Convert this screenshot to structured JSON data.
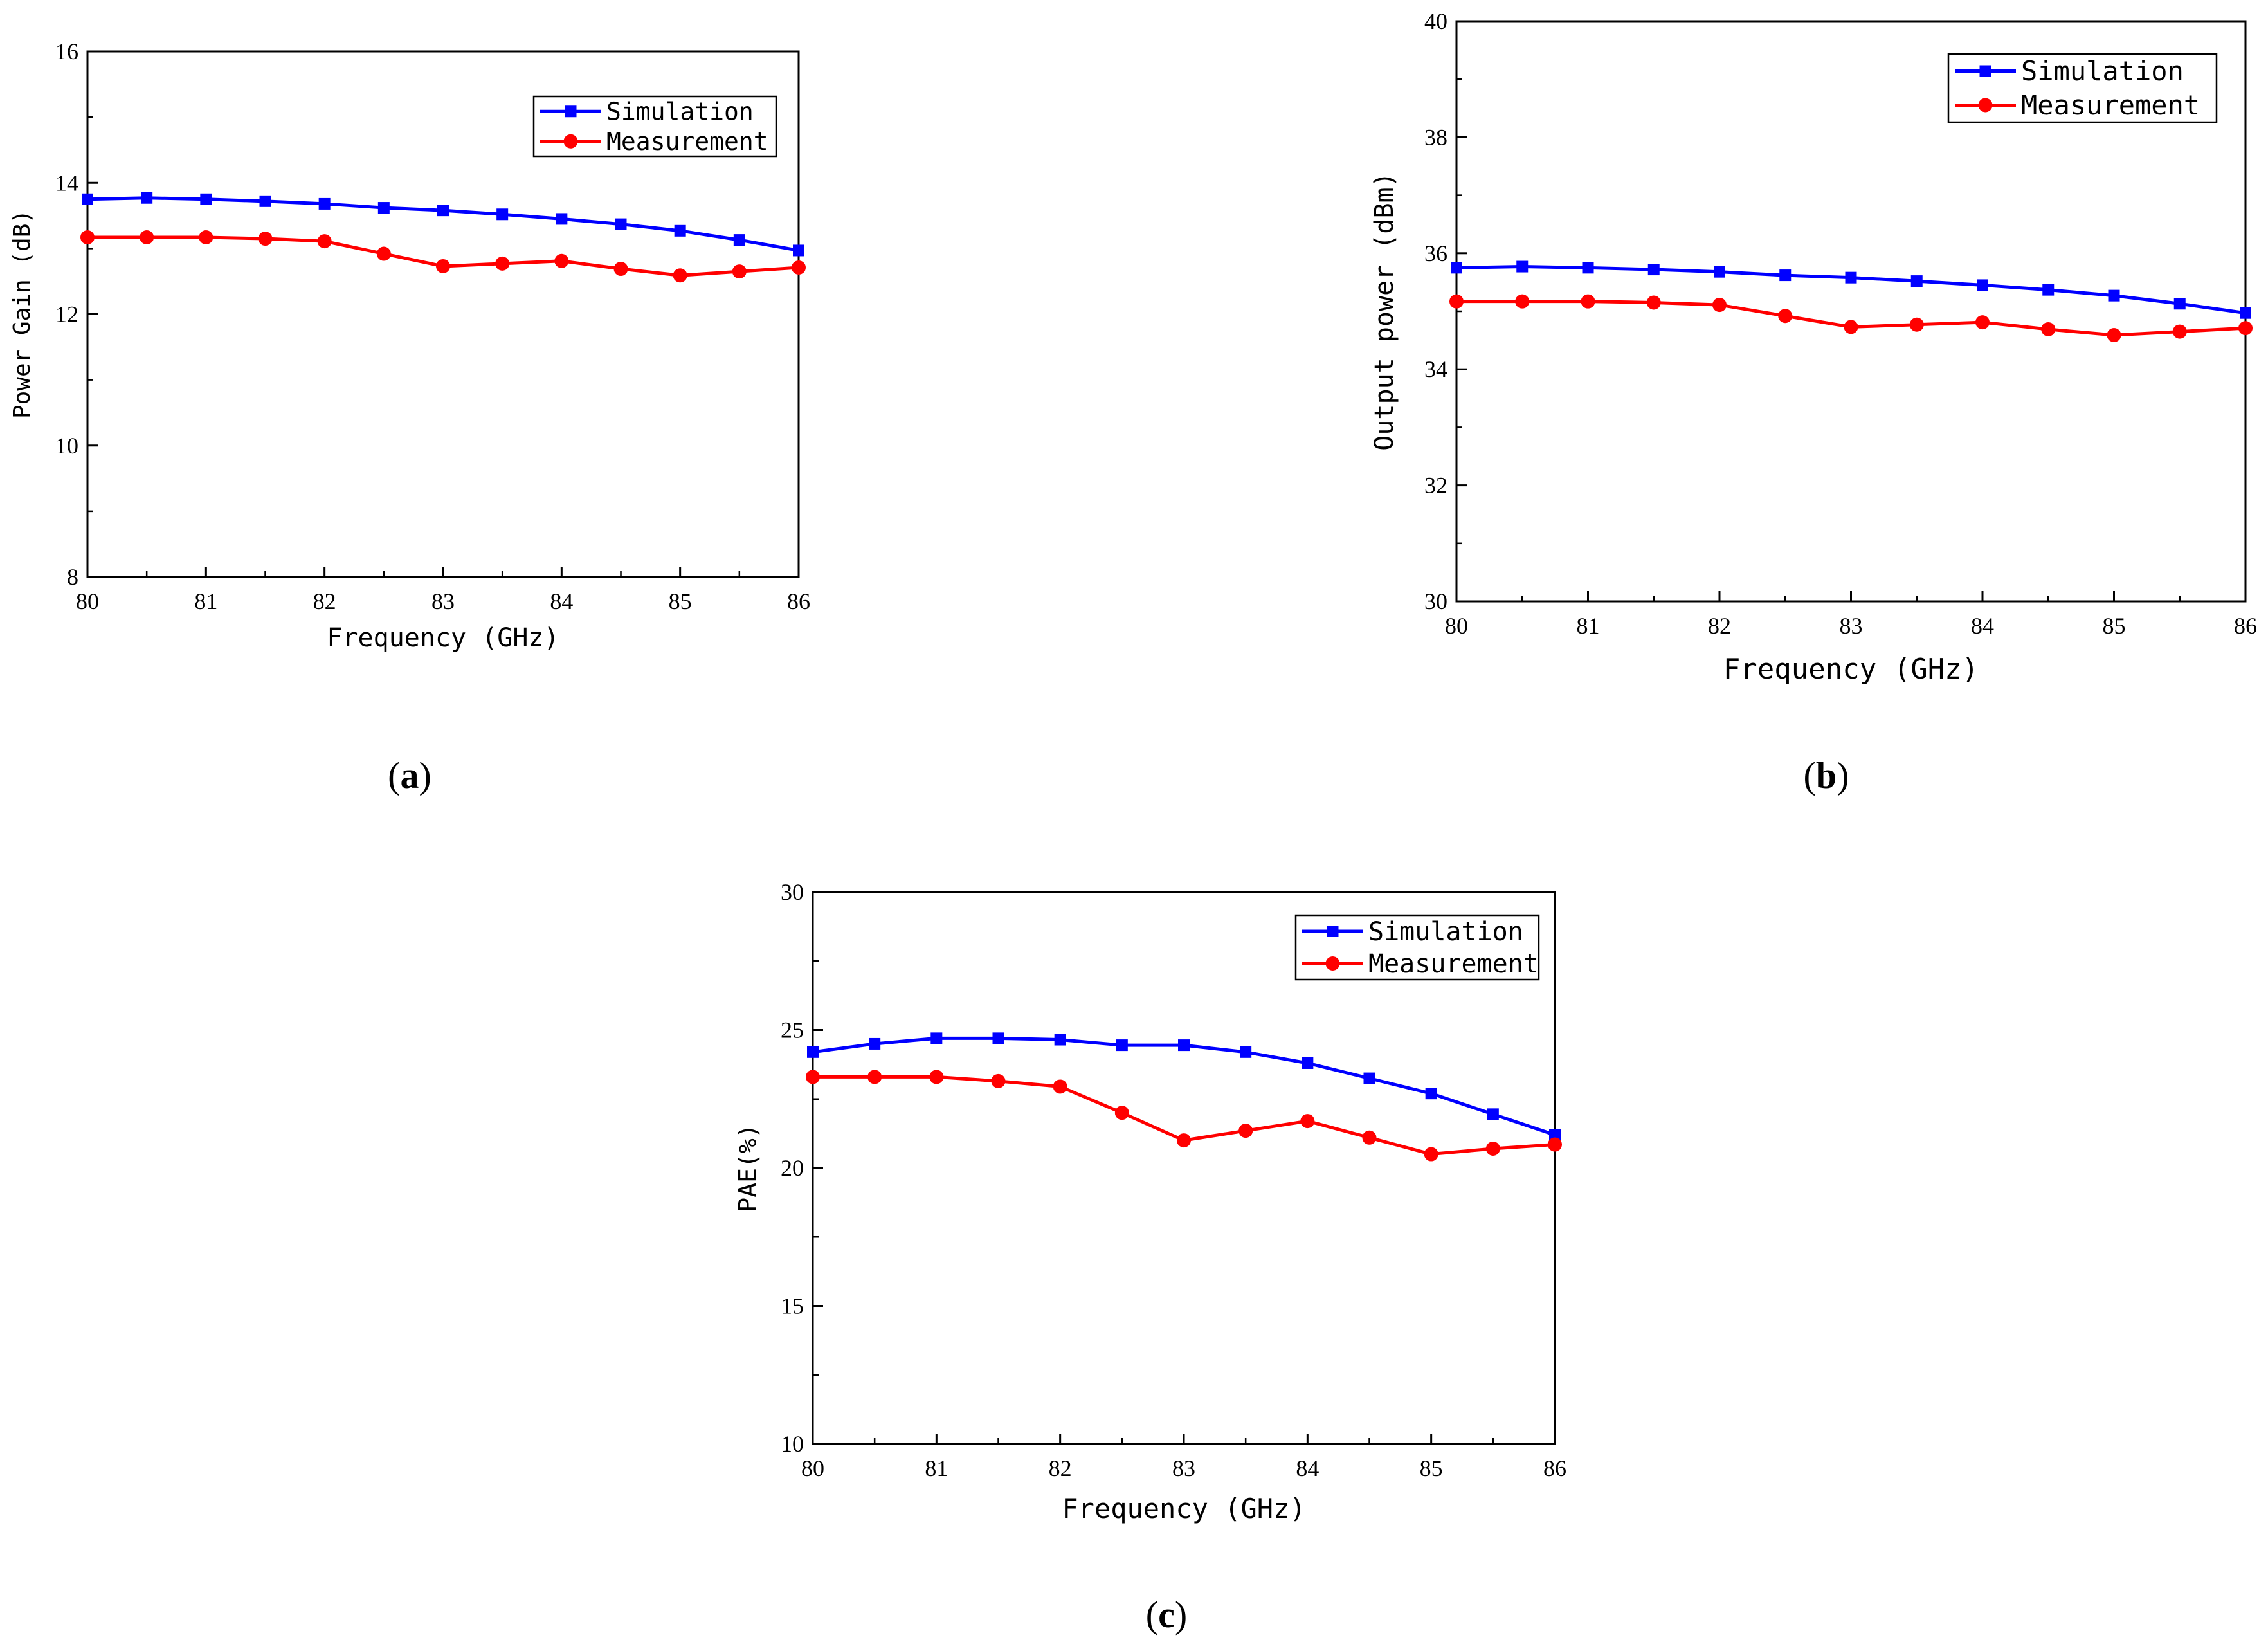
{
  "colors": {
    "simulation": "#0000ff",
    "measurement": "#ff0000",
    "axis": "#000000"
  },
  "chart_data": [
    {
      "type": "line",
      "panel_label": "a",
      "xlabel": "Frequency (GHz)",
      "ylabel": "Power Gain (dB)",
      "xlim": [
        80,
        86
      ],
      "ylim": [
        8,
        16
      ],
      "x_ticks": [
        80,
        81,
        82,
        83,
        84,
        85,
        86
      ],
      "y_ticks": [
        8,
        10,
        12,
        14,
        16
      ],
      "legend_position": "top-right",
      "x": [
        80,
        80.5,
        81,
        81.5,
        82,
        82.5,
        83,
        83.5,
        84,
        84.5,
        85,
        85.5,
        86
      ],
      "series": [
        {
          "name": "Simulation",
          "marker": "square",
          "values": [
            13.75,
            13.77,
            13.75,
            13.72,
            13.68,
            13.62,
            13.58,
            13.52,
            13.45,
            13.37,
            13.27,
            13.13,
            12.97
          ]
        },
        {
          "name": "Measurement",
          "marker": "circle",
          "values": [
            13.17,
            13.17,
            13.17,
            13.15,
            13.11,
            12.92,
            12.73,
            12.77,
            12.81,
            12.69,
            12.59,
            12.65,
            12.71
          ]
        }
      ]
    },
    {
      "type": "line",
      "panel_label": "b",
      "xlabel": "Frequency (GHz)",
      "ylabel": "Output power (dBm)",
      "xlim": [
        80,
        86
      ],
      "ylim": [
        30,
        40
      ],
      "x_ticks": [
        80,
        81,
        82,
        83,
        84,
        85,
        86
      ],
      "y_ticks": [
        30,
        32,
        34,
        36,
        38,
        40
      ],
      "legend_position": "top-right",
      "x": [
        80,
        80.5,
        81,
        81.5,
        82,
        82.5,
        83,
        83.5,
        84,
        84.5,
        85,
        85.5,
        86
      ],
      "series": [
        {
          "name": "Simulation",
          "marker": "square",
          "values": [
            35.75,
            35.77,
            35.75,
            35.72,
            35.68,
            35.62,
            35.58,
            35.52,
            35.45,
            35.37,
            35.27,
            35.13,
            34.97
          ]
        },
        {
          "name": "Measurement",
          "marker": "circle",
          "values": [
            35.17,
            35.17,
            35.17,
            35.15,
            35.11,
            34.92,
            34.73,
            34.77,
            34.81,
            34.69,
            34.59,
            34.65,
            34.71
          ]
        }
      ]
    },
    {
      "type": "line",
      "panel_label": "c",
      "xlabel": "Frequency (GHz)",
      "ylabel": "PAE(%)",
      "xlim": [
        80,
        86
      ],
      "ylim": [
        10,
        30
      ],
      "x_ticks": [
        80,
        81,
        82,
        83,
        84,
        85,
        86
      ],
      "y_ticks": [
        10,
        15,
        20,
        25,
        30
      ],
      "legend_position": "top-right",
      "x": [
        80,
        80.5,
        81,
        81.5,
        82,
        82.5,
        83,
        83.5,
        84,
        84.5,
        85,
        85.5,
        86
      ],
      "series": [
        {
          "name": "Simulation",
          "marker": "square",
          "values": [
            24.2,
            24.5,
            24.7,
            24.7,
            24.65,
            24.45,
            24.45,
            24.2,
            23.8,
            23.25,
            22.7,
            21.95,
            21.2
          ]
        },
        {
          "name": "Measurement",
          "marker": "circle",
          "values": [
            23.3,
            23.3,
            23.3,
            23.15,
            22.95,
            22.0,
            21.0,
            21.35,
            21.7,
            21.1,
            20.5,
            20.7,
            20.85
          ]
        }
      ]
    }
  ]
}
